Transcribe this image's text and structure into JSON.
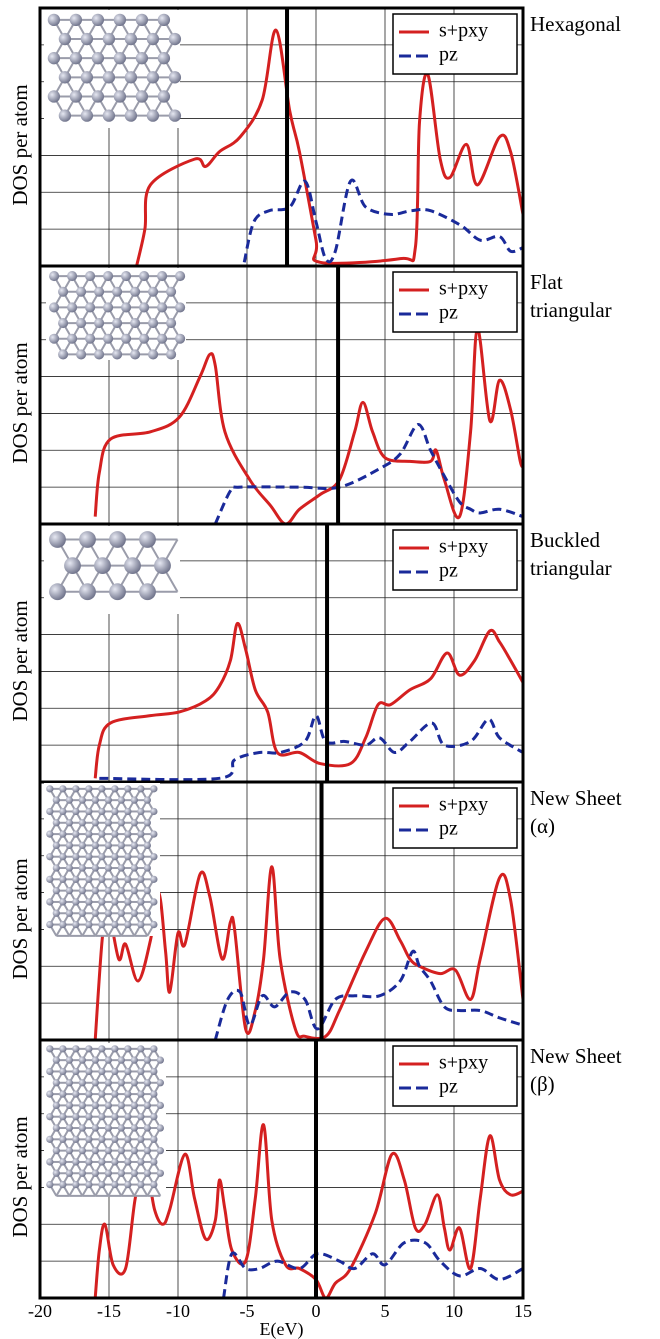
{
  "chart_data": [
    {
      "type": "line",
      "label": [
        "Hexagonal"
      ],
      "ylabel": "DOS per atom",
      "legend": "upper right",
      "grid": true,
      "xlim": [
        -20,
        15
      ],
      "xticks": [
        -20,
        -15,
        -10,
        -5,
        0,
        5,
        10,
        15
      ],
      "ylim": [
        0,
        7
      ],
      "yticks": [
        1,
        2,
        3,
        4,
        5,
        6
      ],
      "vline": -2.1,
      "series": [
        {
          "name": "s+pxy",
          "color": "#d42020",
          "dash": false,
          "x": [
            -13.0,
            -12.4,
            -12.0,
            -8.8,
            -8.0,
            -7.0,
            -5.5,
            -3.9,
            -2.9,
            -1.9,
            -1.2,
            0,
            0.3,
            6.1,
            7.2,
            7.5,
            8.1,
            9.0,
            9.7,
            10.9,
            11.7,
            13.3,
            14.1,
            15
          ],
          "values": [
            0,
            1.0,
            2.2,
            2.9,
            2.7,
            3.1,
            3.5,
            4.5,
            6.4,
            4.2,
            3.1,
            0.7,
            0.1,
            0.2,
            0.5,
            3.9,
            5.2,
            2.9,
            2.4,
            3.3,
            2.2,
            3.5,
            3.1,
            1.4
          ]
        },
        {
          "name": "pz",
          "color": "#1a2a9a",
          "dash": true,
          "x": [
            -5.2,
            -4.5,
            -3.4,
            -1.9,
            -0.8,
            0,
            0.7,
            1.4,
            2.5,
            3.6,
            5.4,
            6.9,
            8.3,
            10.5,
            11.9,
            13.3,
            14.1,
            15
          ],
          "values": [
            0.1,
            1.2,
            1.5,
            1.6,
            2.3,
            1.2,
            0.2,
            0.4,
            2.3,
            1.6,
            1.4,
            1.5,
            1.5,
            1.1,
            0.7,
            0.8,
            0.4,
            0.5
          ]
        }
      ]
    },
    {
      "type": "line",
      "label": [
        "Flat",
        "triangular"
      ],
      "ylabel": "DOS per atom",
      "legend": "upper right",
      "grid": true,
      "xlim": [
        -20,
        15
      ],
      "xticks": [
        -20,
        -15,
        -10,
        -5,
        0,
        5,
        10,
        15
      ],
      "ylim": [
        0,
        7
      ],
      "yticks": [
        1,
        2,
        3,
        4,
        5,
        6
      ],
      "vline": 1.6,
      "series": [
        {
          "name": "s+pxy",
          "color": "#d42020",
          "dash": false,
          "x": [
            -16,
            -15.7,
            -14.9,
            -12.0,
            -9.9,
            -8.4,
            -7.7,
            -7.3,
            -6.6,
            -4.8,
            -3.3,
            -2.2,
            -1.2,
            0.3,
            1.7,
            2.8,
            3.4,
            4.1,
            5.0,
            6.8,
            8.3,
            8.7,
            9.3,
            10.4,
            11.2,
            11.7,
            12.6,
            13.3,
            14.1,
            14.8,
            15
          ],
          "values": [
            0.2,
            1.4,
            2.3,
            2.5,
            2.9,
            4.0,
            4.6,
            4.3,
            2.5,
            1.2,
            0.5,
            0,
            0.4,
            0.8,
            1.2,
            2.5,
            3.3,
            2.5,
            1.8,
            1.7,
            1.7,
            2.0,
            1.2,
            0.2,
            2.5,
            5.3,
            2.8,
            3.9,
            3.1,
            1.7,
            1.6
          ]
        },
        {
          "name": "pz",
          "color": "#1a2a9a",
          "dash": true,
          "x": [
            -7.3,
            -6.2,
            -5.5,
            -1.2,
            1.7,
            4.6,
            6.1,
            7.4,
            8.3,
            9.3,
            10.4,
            11.2,
            11.9,
            13.3,
            15
          ],
          "values": [
            0,
            0.9,
            1.0,
            1.0,
            1.0,
            1.5,
            1.9,
            2.7,
            2.0,
            1.3,
            0.6,
            0.4,
            0.3,
            0.4,
            0.2
          ]
        }
      ]
    },
    {
      "type": "line",
      "label": [
        "Buckled",
        "triangular"
      ],
      "ylabel": "DOS per atom",
      "legend": "upper right",
      "grid": true,
      "xlim": [
        -20,
        15
      ],
      "xticks": [
        -20,
        -15,
        -10,
        -5,
        0,
        5,
        10,
        15
      ],
      "ylim": [
        0,
        7
      ],
      "yticks": [
        1,
        2,
        3,
        4,
        5,
        6
      ],
      "vline": 0.8,
      "series": [
        {
          "name": "s+pxy",
          "color": "#d42020",
          "dash": false,
          "x": [
            -16,
            -15.7,
            -14.9,
            -12.0,
            -9.9,
            -8.0,
            -7.0,
            -6.2,
            -5.7,
            -5.1,
            -4.4,
            -3.5,
            -2.8,
            -1.2,
            0.3,
            2.5,
            3.6,
            4.5,
            5.4,
            6.8,
            8.3,
            9.5,
            10.4,
            11.5,
            12.6,
            13.3,
            14.1,
            15
          ],
          "values": [
            0.1,
            1.0,
            1.6,
            1.8,
            1.9,
            2.2,
            2.6,
            3.3,
            4.3,
            3.6,
            2.5,
            1.9,
            0.8,
            0.8,
            0.5,
            0.5,
            1.2,
            2.1,
            2.1,
            2.5,
            2.8,
            3.5,
            2.9,
            3.3,
            4.1,
            3.8,
            3.3,
            2.7
          ]
        },
        {
          "name": "pz",
          "color": "#1a2a9a",
          "dash": true,
          "x": [
            -15.7,
            -7.0,
            -5.9,
            -4.1,
            -2.6,
            -0.8,
            0,
            0.7,
            2.1,
            3.6,
            4.6,
            5.7,
            6.8,
            8.4,
            9.3,
            11.2,
            12.5,
            13.3,
            15
          ],
          "values": [
            0.1,
            0.1,
            0.6,
            0.8,
            0.8,
            1.1,
            1.8,
            1.1,
            1.1,
            1.0,
            1.2,
            0.8,
            1.1,
            1.6,
            1.0,
            1.1,
            1.7,
            1.2,
            0.8
          ]
        }
      ]
    },
    {
      "type": "line",
      "label": [
        "New Sheet",
        "(α)"
      ],
      "ylabel": "DOS per atom",
      "legend": "upper right",
      "grid": true,
      "xlim": [
        -20,
        15
      ],
      "xticks": [
        -20,
        -15,
        -10,
        -5,
        0,
        5,
        10,
        15
      ],
      "ylim": [
        0,
        7
      ],
      "yticks": [
        1,
        2,
        3,
        4,
        5,
        6
      ],
      "vline": 0.4,
      "series": [
        {
          "name": "s+pxy",
          "color": "#d42020",
          "dash": false,
          "x": [
            -16,
            -15.5,
            -15.1,
            -14.3,
            -13.8,
            -12.9,
            -12.0,
            -11.4,
            -10.9,
            -10.6,
            -10.0,
            -9.5,
            -8.4,
            -7.7,
            -6.8,
            -6.2,
            -5.9,
            -5.1,
            -4.4,
            -3.8,
            -3.2,
            -2.6,
            -1.5,
            -0.8,
            0.7,
            1.7,
            3.6,
            5.0,
            6.1,
            6.8,
            7.5,
            9.0,
            10.1,
            11.2,
            11.9,
            13.3,
            14.1,
            15
          ],
          "values": [
            0,
            2.7,
            3.6,
            2.2,
            2.6,
            1.6,
            2.7,
            4.0,
            2.4,
            1.3,
            2.9,
            2.6,
            4.5,
            3.9,
            2.2,
            3.2,
            3.0,
            0.3,
            0.8,
            2.2,
            4.7,
            2.2,
            0.3,
            0.1,
            0.1,
            0.8,
            2.4,
            3.3,
            2.7,
            2.2,
            2.0,
            1.8,
            1.9,
            1.1,
            2.2,
            4.4,
            3.8,
            1.1
          ]
        },
        {
          "name": "pz",
          "color": "#1a2a9a",
          "dash": true,
          "x": [
            -7.3,
            -6.4,
            -5.5,
            -4.8,
            -3.9,
            -3.0,
            -1.9,
            -0.8,
            0.1,
            1.4,
            2.8,
            4.6,
            6.1,
            7.0,
            7.5,
            8.3,
            9.3,
            10.4,
            11.9,
            13.3,
            15
          ],
          "values": [
            0,
            1.1,
            1.3,
            0.4,
            1.2,
            0.9,
            1.3,
            1.1,
            0.3,
            1.1,
            1.2,
            1.2,
            1.6,
            2.4,
            2.0,
            1.6,
            0.9,
            0.8,
            0.8,
            0.6,
            0.4
          ]
        }
      ]
    },
    {
      "type": "line",
      "label": [
        "New Sheet",
        "(β)"
      ],
      "ylabel": "DOS per atom",
      "xlabel": "E(eV)",
      "legend": "upper right",
      "grid": true,
      "xlim": [
        -20,
        15
      ],
      "xticks": [
        -20,
        -15,
        -10,
        -5,
        0,
        5,
        10,
        15
      ],
      "ylim": [
        0,
        7
      ],
      "yticks": [
        1,
        2,
        3,
        4,
        5,
        6
      ],
      "vline": 0,
      "series": [
        {
          "name": "s+pxy",
          "color": "#d42020",
          "dash": false,
          "x": [
            -16,
            -15.7,
            -15.3,
            -14.7,
            -13.8,
            -13.1,
            -12.4,
            -11.7,
            -11.1,
            -10.6,
            -9.5,
            -8.8,
            -8.0,
            -7.3,
            -7.0,
            -6.6,
            -6.1,
            -5.1,
            -4.4,
            -3.8,
            -3.2,
            -2.2,
            -1.2,
            0,
            0.7,
            1.4,
            2.5,
            4.3,
            5.5,
            6.4,
            7.2,
            7.9,
            8.8,
            9.3,
            9.7,
            10.4,
            11.2,
            11.9,
            12.6,
            13.3,
            14.1,
            15
          ],
          "values": [
            0,
            1.3,
            2.0,
            0.9,
            0.8,
            2.7,
            3.7,
            2.4,
            2.0,
            2.4,
            3.9,
            2.7,
            1.6,
            2.1,
            3.2,
            2.4,
            1.3,
            1.0,
            2.7,
            4.7,
            2.1,
            0.9,
            0.8,
            0.5,
            0,
            0.4,
            0.8,
            2.3,
            3.9,
            3.2,
            1.9,
            2.0,
            2.8,
            1.9,
            1.3,
            1.9,
            0.8,
            2.7,
            4.4,
            3.2,
            2.8,
            2.9
          ]
        },
        {
          "name": "pz",
          "color": "#1a2a9a",
          "dash": true,
          "x": [
            -6.7,
            -6.1,
            -5.1,
            -4.1,
            -2.8,
            -1.2,
            0.1,
            1.7,
            2.8,
            4.1,
            5.0,
            6.4,
            7.9,
            9.0,
            10.4,
            11.9,
            13.3,
            15
          ],
          "values": [
            0,
            1.2,
            0.8,
            0.8,
            1.0,
            0.8,
            1.2,
            1.0,
            0.8,
            1.2,
            0.9,
            1.5,
            1.5,
            1.0,
            0.6,
            0.8,
            0.5,
            0.8
          ]
        }
      ]
    }
  ]
}
